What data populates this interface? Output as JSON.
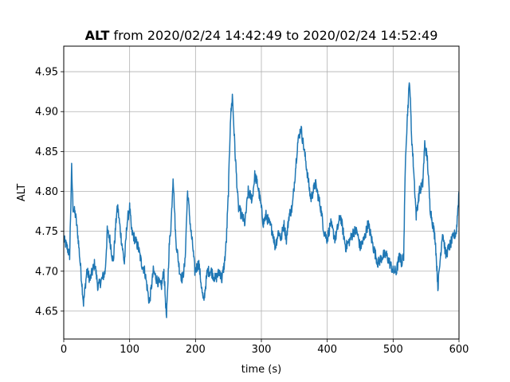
{
  "chart_data": {
    "type": "line",
    "title_bold": "ALT",
    "title_rest": " from 2020/02/24 14:42:49 to 2020/02/24 14:52:49",
    "xlabel": "time (s)",
    "ylabel": "ALT",
    "xlim": [
      0,
      600
    ],
    "ylim": [
      4.615,
      4.982
    ],
    "xticks": [
      0,
      100,
      200,
      300,
      400,
      500,
      600
    ],
    "yticks": [
      4.65,
      4.7,
      4.75,
      4.8,
      4.85,
      4.9,
      4.95
    ],
    "grid": true,
    "legend": "none",
    "series": [
      {
        "color": "#1f77b4",
        "x": [
          0,
          5,
          9,
          12,
          14,
          18,
          22,
          27,
          30,
          35,
          40,
          47,
          52,
          58,
          63,
          66,
          70,
          75,
          80,
          82,
          86,
          92,
          96,
          100,
          103,
          108,
          113,
          118,
          123,
          130,
          136,
          141,
          148,
          152,
          156,
          160,
          163,
          166,
          170,
          176,
          180,
          184,
          188,
          193,
          196,
          199,
          205,
          212,
          218,
          224,
          230,
          237,
          240,
          244,
          247,
          250,
          253,
          256,
          260,
          265,
          270,
          275,
          280,
          286,
          290,
          294,
          298,
          303,
          307,
          312,
          317,
          321,
          326,
          330,
          334,
          338,
          342,
          347,
          351,
          355,
          360,
          367,
          375,
          382,
          390,
          395,
          400,
          405,
          412,
          420,
          428,
          435,
          440,
          445,
          450,
          456,
          462,
          470,
          477,
          485,
          490,
          495,
          500,
          505,
          510,
          513,
          516,
          519,
          522,
          525,
          528,
          531,
          535,
          540,
          545,
          548,
          552,
          556,
          560,
          564,
          568,
          575,
          580,
          585,
          590,
          596,
          600
        ],
        "y": [
          4.74,
          4.73,
          4.72,
          4.83,
          4.78,
          4.77,
          4.74,
          4.69,
          4.66,
          4.7,
          4.69,
          4.71,
          4.68,
          4.69,
          4.7,
          4.75,
          4.74,
          4.71,
          4.77,
          4.78,
          4.75,
          4.71,
          4.76,
          4.78,
          4.75,
          4.74,
          4.73,
          4.71,
          4.7,
          4.66,
          4.7,
          4.69,
          4.68,
          4.7,
          4.64,
          4.73,
          4.76,
          4.82,
          4.74,
          4.7,
          4.69,
          4.71,
          4.8,
          4.75,
          4.73,
          4.7,
          4.71,
          4.66,
          4.7,
          4.7,
          4.69,
          4.7,
          4.69,
          4.71,
          4.74,
          4.8,
          4.89,
          4.92,
          4.85,
          4.78,
          4.77,
          4.76,
          4.8,
          4.79,
          4.82,
          4.81,
          4.79,
          4.76,
          4.77,
          4.76,
          4.75,
          4.73,
          4.75,
          4.74,
          4.76,
          4.74,
          4.77,
          4.78,
          4.82,
          4.86,
          4.88,
          4.84,
          4.79,
          4.81,
          4.78,
          4.75,
          4.74,
          4.76,
          4.74,
          4.77,
          4.73,
          4.74,
          4.75,
          4.75,
          4.73,
          4.74,
          4.76,
          4.73,
          4.71,
          4.72,
          4.72,
          4.71,
          4.7,
          4.7,
          4.72,
          4.71,
          4.72,
          4.85,
          4.9,
          4.94,
          4.87,
          4.83,
          4.77,
          4.8,
          4.81,
          4.86,
          4.84,
          4.78,
          4.76,
          4.74,
          4.68,
          4.75,
          4.72,
          4.73,
          4.74,
          4.75,
          4.8
        ]
      }
    ]
  }
}
